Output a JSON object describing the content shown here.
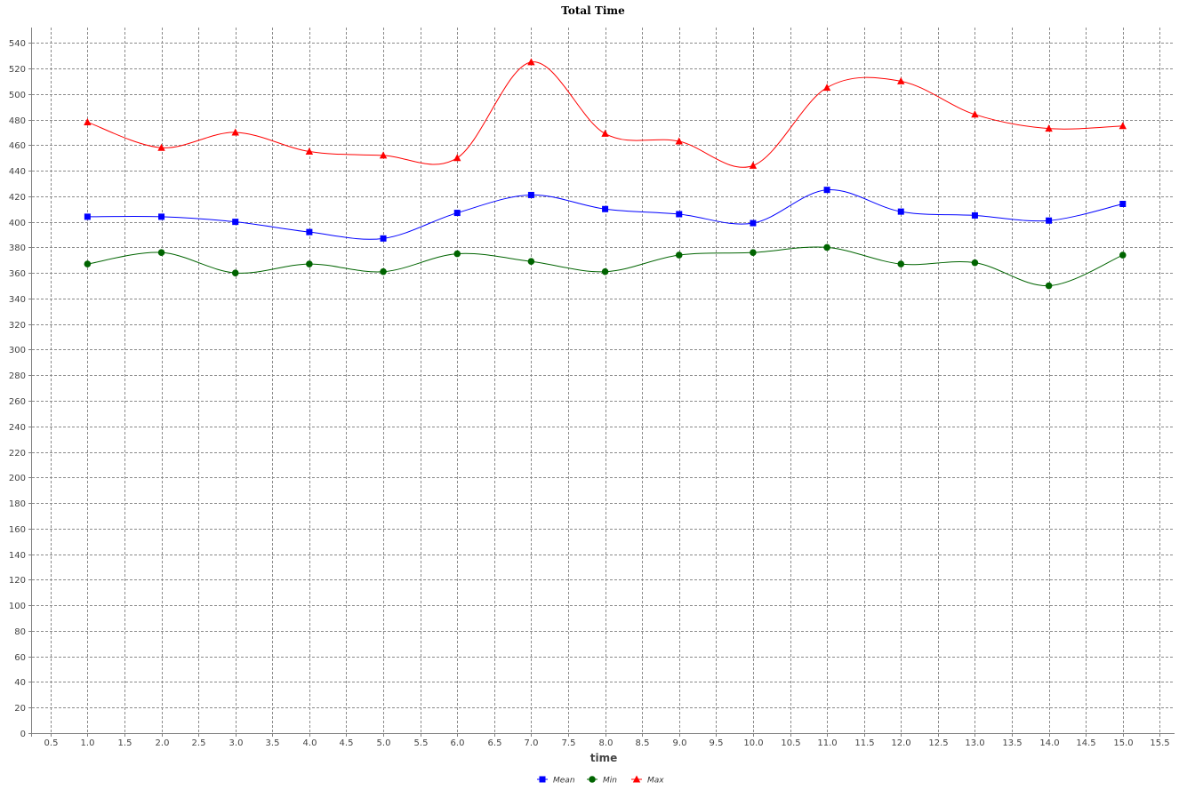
{
  "chart_data": {
    "type": "line",
    "title": "Total Time",
    "xlabel": "time",
    "ylabel": "",
    "xlim": [
      0.25,
      15.7
    ],
    "ylim": [
      0,
      552
    ],
    "x_ticks": [
      0.5,
      1.0,
      1.5,
      2.0,
      2.5,
      3.0,
      3.5,
      4.0,
      4.5,
      5.0,
      5.5,
      6.0,
      6.5,
      7.0,
      7.5,
      8.0,
      8.5,
      9.0,
      9.5,
      10.0,
      10.5,
      11.0,
      11.5,
      12.0,
      12.5,
      13.0,
      13.5,
      14.0,
      14.5,
      15.0,
      15.5
    ],
    "y_ticks": [
      0,
      20,
      40,
      60,
      80,
      100,
      120,
      140,
      160,
      180,
      200,
      220,
      240,
      260,
      280,
      300,
      320,
      340,
      360,
      380,
      400,
      420,
      440,
      460,
      480,
      500,
      520,
      540
    ],
    "grid": true,
    "legend_position": "bottom-center",
    "x": [
      1,
      2,
      3,
      4,
      5,
      6,
      7,
      8,
      9,
      10,
      11,
      12,
      13,
      14,
      15
    ],
    "series": [
      {
        "name": "Mean",
        "color": "#0000ff",
        "marker": "square",
        "values": [
          404,
          404,
          400,
          392,
          387,
          407,
          421,
          410,
          406,
          399,
          425,
          408,
          405,
          401,
          414
        ]
      },
      {
        "name": "Min",
        "color": "#006400",
        "marker": "circle",
        "values": [
          367,
          376,
          360,
          367,
          361,
          375,
          369,
          361,
          374,
          376,
          380,
          367,
          368,
          350,
          374
        ]
      },
      {
        "name": "Max",
        "color": "#ff0000",
        "marker": "triangle",
        "values": [
          478,
          458,
          470,
          455,
          452,
          450,
          525,
          469,
          463,
          444,
          505,
          510,
          484,
          473,
          475
        ]
      }
    ]
  }
}
